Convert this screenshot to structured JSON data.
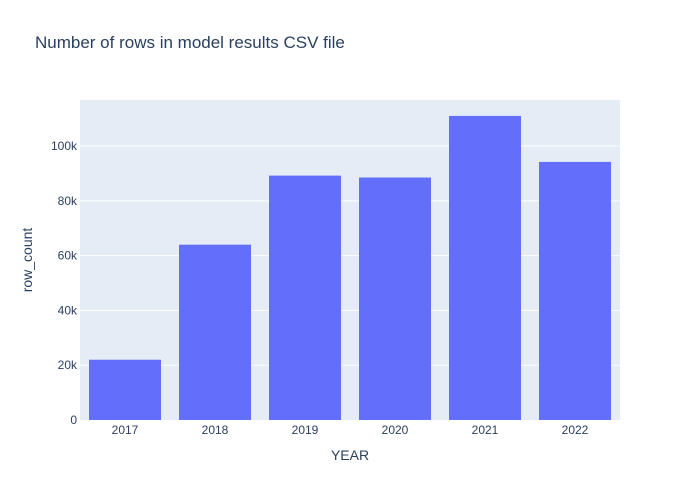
{
  "chart_data": {
    "type": "bar",
    "title": "Number of rows in model results CSV file",
    "xlabel": "YEAR",
    "ylabel": "row_count",
    "categories": [
      "2017",
      "2018",
      "2019",
      "2020",
      "2021",
      "2022"
    ],
    "values": [
      22000,
      64000,
      89200,
      88500,
      111000,
      94200
    ],
    "ylim": [
      0,
      116800
    ],
    "yticks": [
      0,
      20000,
      40000,
      60000,
      80000,
      100000
    ],
    "ytick_labels": [
      "0",
      "20k",
      "40k",
      "60k",
      "80k",
      "100k"
    ],
    "grid": true,
    "bar_color": "#636efa",
    "plot_background": "#e5ecf6",
    "text_color": "#2a3f5f"
  }
}
